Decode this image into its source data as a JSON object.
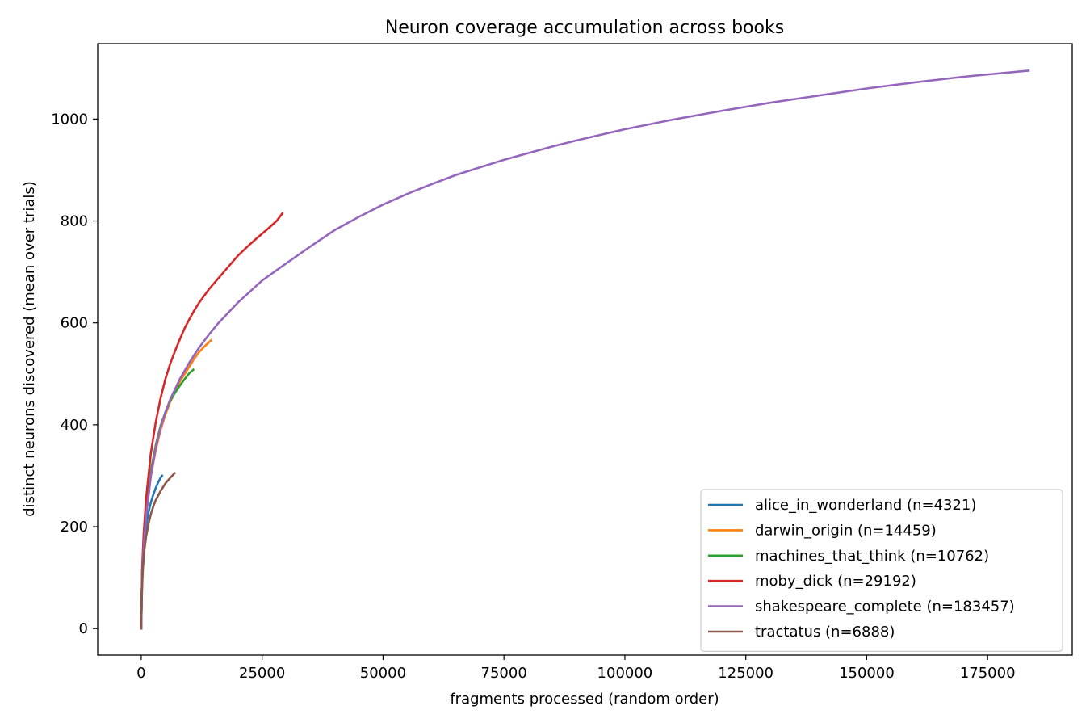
{
  "chart_data": {
    "type": "line",
    "title": "Neuron coverage accumulation across books",
    "xlabel": "fragments processed (random order)",
    "ylabel": "distinct neurons discovered (mean over trials)",
    "xlim": [
      -9000,
      192500
    ],
    "ylim": [
      -52,
      1148
    ],
    "xticks": [
      0,
      25000,
      50000,
      75000,
      100000,
      125000,
      150000,
      175000
    ],
    "yticks": [
      0,
      200,
      400,
      600,
      800,
      1000
    ],
    "grid": false,
    "legend_position": "lower-right",
    "series": [
      {
        "name": "alice_in_wonderland (n=4321)",
        "color": "#1f77b4",
        "points": [
          [
            0,
            0
          ],
          [
            100,
            70
          ],
          [
            300,
            120
          ],
          [
            600,
            165
          ],
          [
            1000,
            200
          ],
          [
            1500,
            228
          ],
          [
            2000,
            248
          ],
          [
            2500,
            263
          ],
          [
            3000,
            276
          ],
          [
            3500,
            287
          ],
          [
            4000,
            296
          ],
          [
            4321,
            300
          ]
        ]
      },
      {
        "name": "darwin_origin (n=14459)",
        "color": "#ff7f0e",
        "points": [
          [
            0,
            0
          ],
          [
            200,
            110
          ],
          [
            500,
            165
          ],
          [
            1000,
            225
          ],
          [
            2000,
            300
          ],
          [
            3000,
            350
          ],
          [
            4000,
            390
          ],
          [
            5000,
            420
          ],
          [
            6000,
            445
          ],
          [
            7000,
            465
          ],
          [
            8000,
            485
          ],
          [
            9000,
            500
          ],
          [
            10000,
            515
          ],
          [
            11000,
            530
          ],
          [
            12000,
            543
          ],
          [
            13000,
            553
          ],
          [
            14459,
            566
          ]
        ]
      },
      {
        "name": "machines_that_think (n=10762)",
        "color": "#2ca02c",
        "points": [
          [
            0,
            0
          ],
          [
            200,
            115
          ],
          [
            500,
            175
          ],
          [
            1000,
            240
          ],
          [
            2000,
            310
          ],
          [
            3000,
            360
          ],
          [
            4000,
            398
          ],
          [
            5000,
            425
          ],
          [
            6000,
            447
          ],
          [
            7000,
            463
          ],
          [
            8000,
            477
          ],
          [
            9000,
            490
          ],
          [
            10000,
            502
          ],
          [
            10762,
            508
          ]
        ]
      },
      {
        "name": "moby_dick (n=29192)",
        "color": "#d62728",
        "points": [
          [
            0,
            0
          ],
          [
            200,
            120
          ],
          [
            500,
            185
          ],
          [
            1000,
            255
          ],
          [
            2000,
            345
          ],
          [
            3000,
            405
          ],
          [
            4000,
            452
          ],
          [
            5000,
            490
          ],
          [
            6000,
            520
          ],
          [
            7000,
            545
          ],
          [
            8000,
            568
          ],
          [
            9000,
            590
          ],
          [
            10000,
            608
          ],
          [
            11000,
            625
          ],
          [
            12000,
            640
          ],
          [
            14000,
            666
          ],
          [
            16000,
            688
          ],
          [
            18000,
            710
          ],
          [
            20000,
            732
          ],
          [
            22000,
            750
          ],
          [
            24000,
            767
          ],
          [
            26000,
            783
          ],
          [
            28000,
            800
          ],
          [
            29192,
            815
          ]
        ]
      },
      {
        "name": "shakespeare_complete (n=183457)",
        "color": "#9467bd",
        "points": [
          [
            0,
            0
          ],
          [
            200,
            100
          ],
          [
            500,
            160
          ],
          [
            1000,
            220
          ],
          [
            2000,
            300
          ],
          [
            3000,
            355
          ],
          [
            4000,
            395
          ],
          [
            5000,
            425
          ],
          [
            6000,
            450
          ],
          [
            8000,
            490
          ],
          [
            10000,
            523
          ],
          [
            12000,
            552
          ],
          [
            14000,
            577
          ],
          [
            16000,
            600
          ],
          [
            18000,
            620
          ],
          [
            20000,
            640
          ],
          [
            25000,
            683
          ],
          [
            30000,
            717
          ],
          [
            35000,
            750
          ],
          [
            40000,
            782
          ],
          [
            45000,
            808
          ],
          [
            50000,
            832
          ],
          [
            55000,
            853
          ],
          [
            60000,
            872
          ],
          [
            65000,
            890
          ],
          [
            70000,
            905
          ],
          [
            75000,
            920
          ],
          [
            80000,
            933
          ],
          [
            85000,
            946
          ],
          [
            90000,
            958
          ],
          [
            95000,
            969
          ],
          [
            100000,
            980
          ],
          [
            110000,
            999
          ],
          [
            120000,
            1016
          ],
          [
            130000,
            1032
          ],
          [
            140000,
            1046
          ],
          [
            150000,
            1060
          ],
          [
            160000,
            1072
          ],
          [
            170000,
            1083
          ],
          [
            183457,
            1095
          ]
        ]
      },
      {
        "name": "tractatus (n=6888)",
        "color": "#8c564b",
        "points": [
          [
            0,
            0
          ],
          [
            100,
            60
          ],
          [
            300,
            110
          ],
          [
            600,
            150
          ],
          [
            1000,
            180
          ],
          [
            1500,
            205
          ],
          [
            2000,
            225
          ],
          [
            2500,
            240
          ],
          [
            3000,
            252
          ],
          [
            4000,
            270
          ],
          [
            5000,
            285
          ],
          [
            6000,
            296
          ],
          [
            6888,
            305
          ]
        ]
      }
    ]
  }
}
